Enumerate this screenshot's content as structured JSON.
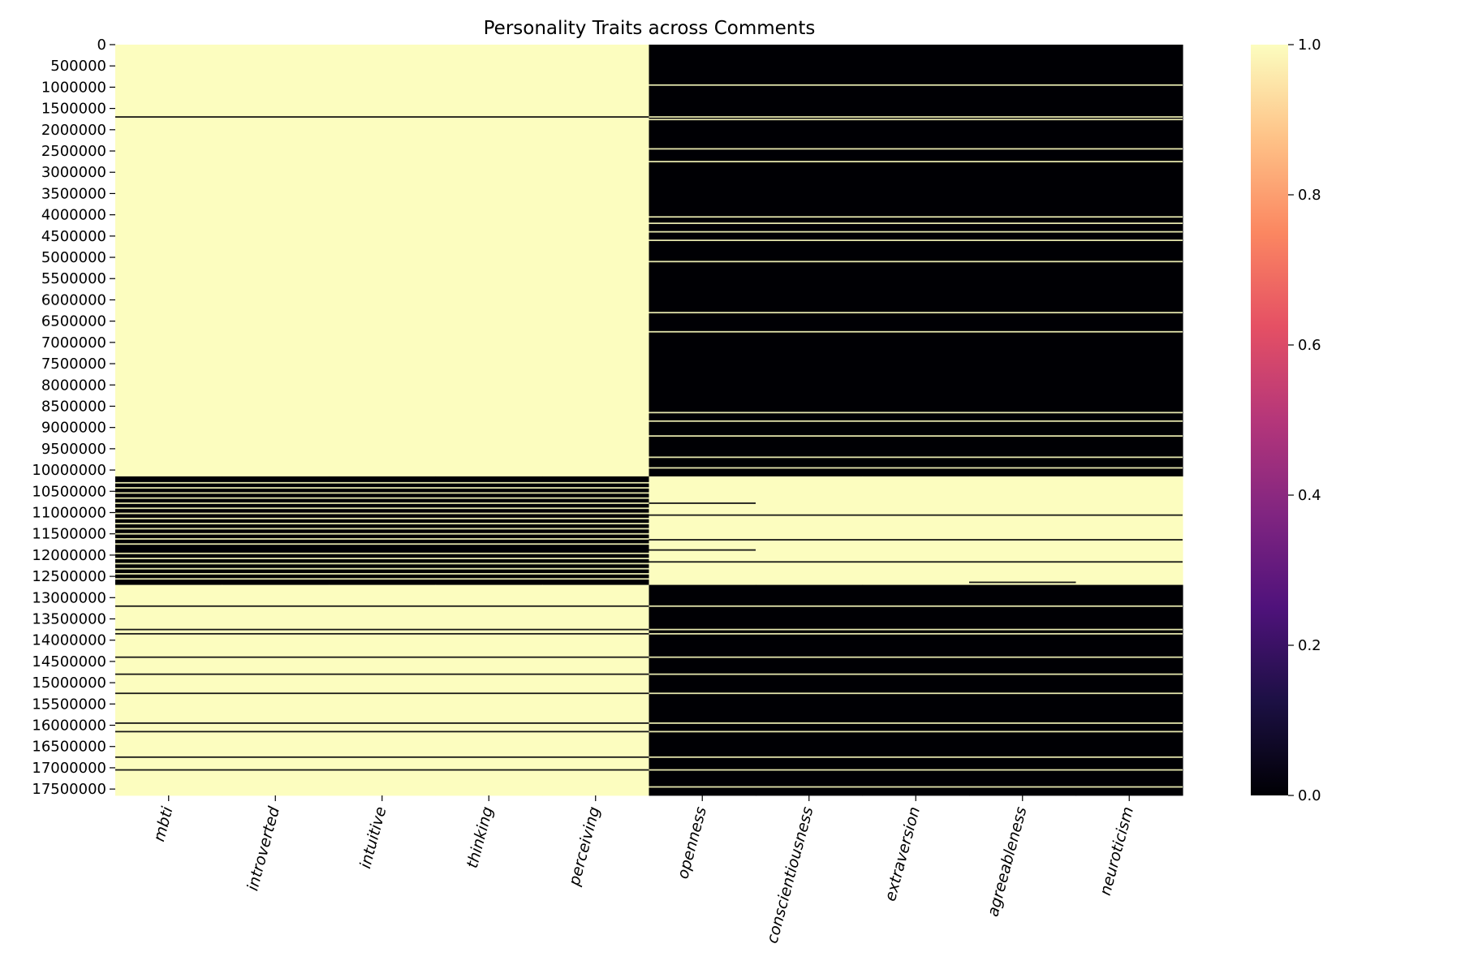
{
  "chart_data": {
    "type": "heatmap",
    "title": "Personality Traits across Comments",
    "xlabel": "",
    "ylabel": "",
    "columns": [
      "mbti",
      "introverted",
      "intuitive",
      "thinking",
      "perceiving",
      "openness",
      "conscientiousness",
      "extraversion",
      "agreeableness",
      "neuroticism"
    ],
    "y_ticks": [
      0,
      500000,
      1000000,
      1500000,
      2000000,
      2500000,
      3000000,
      3500000,
      4000000,
      4500000,
      5000000,
      5500000,
      6000000,
      6500000,
      7000000,
      7500000,
      8000000,
      8500000,
      9000000,
      9500000,
      10000000,
      10500000,
      11000000,
      11500000,
      12000000,
      12500000,
      13000000,
      13500000,
      14000000,
      14500000,
      15000000,
      15500000,
      16000000,
      16500000,
      17000000,
      17500000
    ],
    "row_max": 17650000,
    "colorbar": {
      "colormap": "magma",
      "range": [
        0,
        1
      ],
      "ticks": [
        "0.0",
        "0.2",
        "0.4",
        "0.6",
        "0.8",
        "1.0"
      ],
      "stops": [
        "#000004",
        "#1c1044",
        "#4f127b",
        "#812581",
        "#b5367a",
        "#e55064",
        "#fb8761",
        "#fec287",
        "#fcfdbf"
      ]
    },
    "low_color": "#000004",
    "high_color": "#fcfdbf",
    "blocks": [
      {
        "from": 0,
        "to": 10150000,
        "values": [
          1,
          1,
          1,
          1,
          1,
          0,
          0,
          0,
          0,
          0
        ]
      },
      {
        "from": 10150000,
        "to": 12700000,
        "values": [
          0,
          0,
          0,
          0,
          0,
          1,
          1,
          1,
          1,
          1
        ]
      },
      {
        "from": 12700000,
        "to": 17650000,
        "values": [
          1,
          1,
          1,
          1,
          1,
          0,
          0,
          0,
          0,
          0
        ]
      }
    ],
    "stripes": [
      {
        "y": 950000,
        "cols": [
          5,
          9
        ],
        "value": 1
      },
      {
        "y": 1700000,
        "cols": [
          0,
          4
        ],
        "value": 0
      },
      {
        "y": 1700000,
        "cols": [
          5,
          9
        ],
        "value": 1
      },
      {
        "y": 1760000,
        "cols": [
          5,
          9
        ],
        "value": 1
      },
      {
        "y": 2450000,
        "cols": [
          5,
          9
        ],
        "value": 1
      },
      {
        "y": 2750000,
        "cols": [
          5,
          9
        ],
        "value": 1
      },
      {
        "y": 4050000,
        "cols": [
          5,
          9
        ],
        "value": 1
      },
      {
        "y": 4200000,
        "cols": [
          5,
          9
        ],
        "value": 1
      },
      {
        "y": 4400000,
        "cols": [
          5,
          9
        ],
        "value": 1
      },
      {
        "y": 4600000,
        "cols": [
          5,
          9
        ],
        "value": 1
      },
      {
        "y": 5100000,
        "cols": [
          5,
          9
        ],
        "value": 1
      },
      {
        "y": 6300000,
        "cols": [
          5,
          9
        ],
        "value": 1
      },
      {
        "y": 6750000,
        "cols": [
          5,
          9
        ],
        "value": 1
      },
      {
        "y": 8650000,
        "cols": [
          5,
          9
        ],
        "value": 1
      },
      {
        "y": 8850000,
        "cols": [
          5,
          9
        ],
        "value": 1
      },
      {
        "y": 9200000,
        "cols": [
          5,
          9
        ],
        "value": 1
      },
      {
        "y": 9700000,
        "cols": [
          5,
          9
        ],
        "value": 1
      },
      {
        "y": 9950000,
        "cols": [
          5,
          9
        ],
        "value": 1
      },
      {
        "y": 10300000,
        "cols": [
          0,
          4
        ],
        "value": 1
      },
      {
        "y": 10420000,
        "cols": [
          0,
          4
        ],
        "value": 1
      },
      {
        "y": 10540000,
        "cols": [
          0,
          4
        ],
        "value": 1
      },
      {
        "y": 10660000,
        "cols": [
          0,
          4
        ],
        "value": 1
      },
      {
        "y": 10780000,
        "cols": [
          0,
          4
        ],
        "value": 1
      },
      {
        "y": 10780000,
        "cols": [
          5,
          5
        ],
        "value": 0
      },
      {
        "y": 10900000,
        "cols": [
          0,
          4
        ],
        "value": 1
      },
      {
        "y": 11020000,
        "cols": [
          0,
          4
        ],
        "value": 1
      },
      {
        "y": 11060000,
        "cols": [
          5,
          5
        ],
        "value": 0
      },
      {
        "y": 11060000,
        "cols": [
          6,
          9
        ],
        "value": 0
      },
      {
        "y": 11140000,
        "cols": [
          0,
          4
        ],
        "value": 1
      },
      {
        "y": 11260000,
        "cols": [
          0,
          4
        ],
        "value": 1
      },
      {
        "y": 11380000,
        "cols": [
          0,
          4
        ],
        "value": 1
      },
      {
        "y": 11500000,
        "cols": [
          0,
          4
        ],
        "value": 1
      },
      {
        "y": 11620000,
        "cols": [
          0,
          4
        ],
        "value": 1
      },
      {
        "y": 11640000,
        "cols": [
          5,
          9
        ],
        "value": 0
      },
      {
        "y": 11740000,
        "cols": [
          0,
          4
        ],
        "value": 1
      },
      {
        "y": 11880000,
        "cols": [
          5,
          5
        ],
        "value": 0
      },
      {
        "y": 11960000,
        "cols": [
          0,
          4
        ],
        "value": 1
      },
      {
        "y": 12080000,
        "cols": [
          0,
          4
        ],
        "value": 1
      },
      {
        "y": 12160000,
        "cols": [
          5,
          9
        ],
        "value": 0
      },
      {
        "y": 12200000,
        "cols": [
          0,
          4
        ],
        "value": 1
      },
      {
        "y": 12320000,
        "cols": [
          0,
          4
        ],
        "value": 1
      },
      {
        "y": 12440000,
        "cols": [
          0,
          4
        ],
        "value": 1
      },
      {
        "y": 12560000,
        "cols": [
          0,
          4
        ],
        "value": 1
      },
      {
        "y": 12640000,
        "cols": [
          8,
          8
        ],
        "value": 0
      },
      {
        "y": 13200000,
        "cols": [
          0,
          4
        ],
        "value": 0
      },
      {
        "y": 13200000,
        "cols": [
          5,
          9
        ],
        "value": 1
      },
      {
        "y": 13750000,
        "cols": [
          0,
          4
        ],
        "value": 0
      },
      {
        "y": 13750000,
        "cols": [
          5,
          9
        ],
        "value": 1
      },
      {
        "y": 13850000,
        "cols": [
          0,
          4
        ],
        "value": 0
      },
      {
        "y": 13850000,
        "cols": [
          5,
          9
        ],
        "value": 1
      },
      {
        "y": 14400000,
        "cols": [
          0,
          4
        ],
        "value": 0
      },
      {
        "y": 14400000,
        "cols": [
          5,
          9
        ],
        "value": 1
      },
      {
        "y": 14800000,
        "cols": [
          0,
          4
        ],
        "value": 0
      },
      {
        "y": 14800000,
        "cols": [
          5,
          9
        ],
        "value": 1
      },
      {
        "y": 15250000,
        "cols": [
          0,
          4
        ],
        "value": 0
      },
      {
        "y": 15250000,
        "cols": [
          5,
          9
        ],
        "value": 1
      },
      {
        "y": 15950000,
        "cols": [
          0,
          4
        ],
        "value": 0
      },
      {
        "y": 15950000,
        "cols": [
          5,
          9
        ],
        "value": 1
      },
      {
        "y": 16150000,
        "cols": [
          0,
          4
        ],
        "value": 0
      },
      {
        "y": 16150000,
        "cols": [
          5,
          9
        ],
        "value": 1
      },
      {
        "y": 16750000,
        "cols": [
          0,
          4
        ],
        "value": 0
      },
      {
        "y": 16750000,
        "cols": [
          5,
          9
        ],
        "value": 1
      },
      {
        "y": 17050000,
        "cols": [
          0,
          4
        ],
        "value": 0
      },
      {
        "y": 17050000,
        "cols": [
          5,
          9
        ],
        "value": 1
      },
      {
        "y": 17450000,
        "cols": [
          5,
          9
        ],
        "value": 1
      }
    ]
  }
}
